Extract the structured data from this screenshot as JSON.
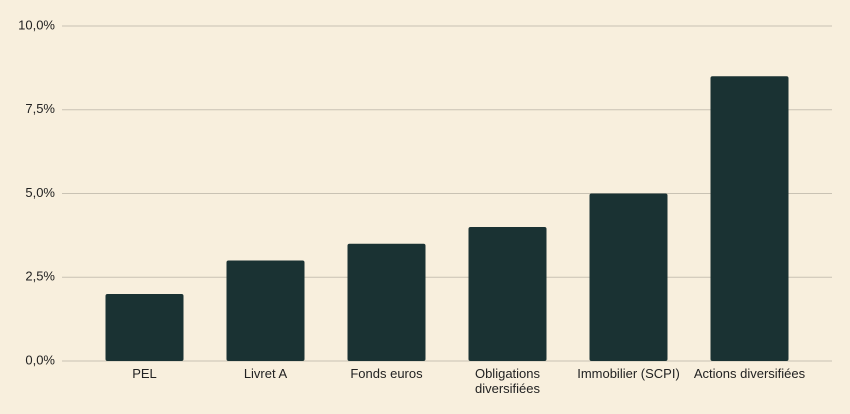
{
  "chart_data": {
    "type": "bar",
    "categories": [
      "PEL",
      "Livret A",
      "Fonds euros",
      "Obligations diversifiées",
      "Immobilier (SCPI)",
      "Actions diversifiées"
    ],
    "values": [
      2,
      3,
      3.5,
      4,
      5,
      8.5
    ],
    "color": "#1a3233",
    "ylim": [
      0,
      10
    ],
    "yticks": [
      {
        "value": 0,
        "label": "0,0%"
      },
      {
        "value": 2.5,
        "label": "2,5%"
      },
      {
        "value": 5,
        "label": "5,0%"
      },
      {
        "value": 7.5,
        "label": "7,5%"
      },
      {
        "value": 10,
        "label": "10,0%"
      }
    ],
    "grid": true
  }
}
